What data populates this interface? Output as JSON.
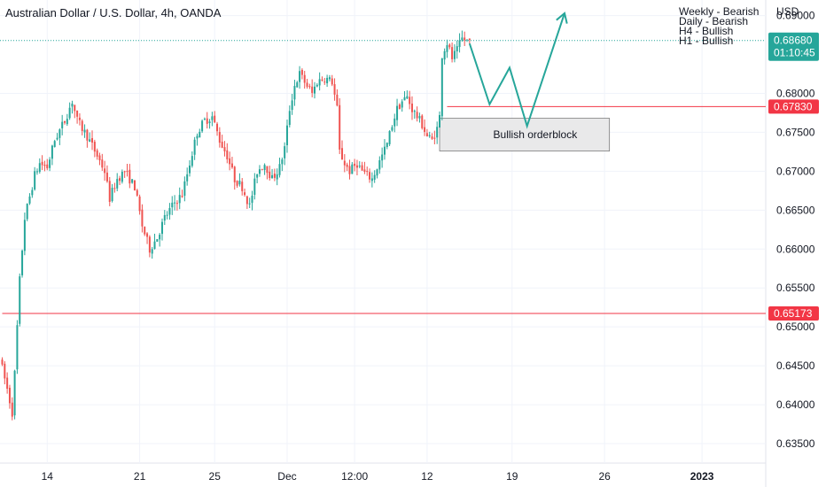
{
  "header": {
    "symbol_title": "Australian Dollar / U.S. Dollar, 4h, OANDA",
    "currency": "USD"
  },
  "bias_notes": [
    "Weekly - Bearish",
    "Daily - Bearish",
    "H4 - Bullish",
    "H1 - Bullish"
  ],
  "colors": {
    "up": "#26a69a",
    "down": "#ef5350",
    "current_tag": "#26a69a",
    "level_tag": "#f23645",
    "orderblock_fill": "#e9e9ea",
    "orderblock_border": "#555555",
    "projection": "#26a69a"
  },
  "chart_data": {
    "type": "candlestick",
    "title": "Australian Dollar / U.S. Dollar, 4h, OANDA",
    "ylabel": "USD",
    "ylim": [
      0.6325,
      0.692
    ],
    "y_ticks": [
      "0.69000",
      "0.68000",
      "0.67500",
      "0.67000",
      "0.66500",
      "0.66000",
      "0.65500",
      "0.65000",
      "0.64500",
      "0.64000",
      "0.63500"
    ],
    "x_ticks": [
      "14",
      "21",
      "25",
      "Dec",
      "12:00",
      "12",
      "19",
      "26",
      "2023"
    ],
    "x_tick_index": [
      18,
      55,
      85,
      114,
      141,
      170,
      204,
      241,
      280
    ],
    "candle_count": 188,
    "price_path": [
      [
        0,
        0.646
      ],
      [
        3,
        0.642
      ],
      [
        5,
        0.639
      ],
      [
        6,
        0.644
      ],
      [
        8,
        0.656
      ],
      [
        10,
        0.664
      ],
      [
        14,
        0.6695
      ],
      [
        16,
        0.671
      ],
      [
        19,
        0.6705
      ],
      [
        22,
        0.674
      ],
      [
        26,
        0.6765
      ],
      [
        29,
        0.679
      ],
      [
        31,
        0.6765
      ],
      [
        35,
        0.6745
      ],
      [
        39,
        0.672
      ],
      [
        42,
        0.67
      ],
      [
        44,
        0.6665
      ],
      [
        47,
        0.669
      ],
      [
        50,
        0.67
      ],
      [
        54,
        0.668
      ],
      [
        57,
        0.663
      ],
      [
        60,
        0.66
      ],
      [
        63,
        0.6615
      ],
      [
        66,
        0.664
      ],
      [
        70,
        0.666
      ],
      [
        73,
        0.667
      ],
      [
        76,
        0.671
      ],
      [
        79,
        0.675
      ],
      [
        82,
        0.6765
      ],
      [
        85,
        0.677
      ],
      [
        88,
        0.674
      ],
      [
        91,
        0.672
      ],
      [
        94,
        0.669
      ],
      [
        97,
        0.668
      ],
      [
        100,
        0.6655
      ],
      [
        103,
        0.67
      ],
      [
        106,
        0.671
      ],
      [
        109,
        0.669
      ],
      [
        112,
        0.6705
      ],
      [
        114,
        0.673
      ],
      [
        116,
        0.678
      ],
      [
        118,
        0.681
      ],
      [
        120,
        0.6825
      ],
      [
        123,
        0.681
      ],
      [
        125,
        0.68
      ],
      [
        127,
        0.6815
      ],
      [
        130,
        0.682
      ],
      [
        133,
        0.6815
      ],
      [
        135,
        0.678
      ],
      [
        136,
        0.6725
      ],
      [
        138,
        0.671
      ],
      [
        140,
        0.67
      ],
      [
        143,
        0.671
      ],
      [
        145,
        0.67
      ],
      [
        147,
        0.6695
      ],
      [
        149,
        0.669
      ],
      [
        151,
        0.6705
      ],
      [
        153,
        0.672
      ],
      [
        155,
        0.6735
      ],
      [
        157,
        0.676
      ],
      [
        159,
        0.678
      ],
      [
        161,
        0.679
      ],
      [
        163,
        0.6795
      ],
      [
        165,
        0.678
      ],
      [
        167,
        0.677
      ],
      [
        169,
        0.676
      ],
      [
        171,
        0.6745
      ],
      [
        173,
        0.674
      ],
      [
        175,
        0.6755
      ],
      [
        176,
        0.677
      ],
      [
        177,
        0.685
      ],
      [
        179,
        0.6865
      ],
      [
        181,
        0.6845
      ],
      [
        183,
        0.6855
      ],
      [
        185,
        0.687
      ],
      [
        187,
        0.6868
      ]
    ],
    "current_price": {
      "value": "0.68680",
      "countdown": "01:10:45",
      "y": 0.6868
    },
    "level_lines": [
      {
        "value": "0.67830",
        "y": 0.6783,
        "start_index": 178
      },
      {
        "value": "0.65173",
        "y": 0.65173,
        "start_index": 0
      }
    ],
    "orderblock": {
      "label": "Bullish orderblock",
      "top": 0.6768,
      "bottom": 0.6726,
      "start_index": 175,
      "end_index": 243
    },
    "projection_path": [
      [
        187,
        0.6864
      ],
      [
        195,
        0.6786
      ],
      [
        203,
        0.6833
      ],
      [
        210,
        0.6758
      ],
      [
        225,
        0.6903
      ]
    ]
  }
}
